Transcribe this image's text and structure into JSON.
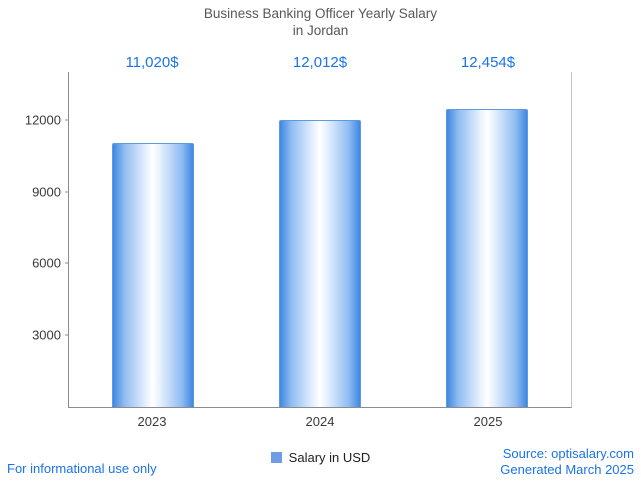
{
  "title": {
    "line1": "Business Banking Officer Yearly Salary",
    "line2": "in Jordan"
  },
  "colors": {
    "accent_blue": "#1a73e8",
    "bar_edge_blue": "#3f87e0",
    "legend_swatch": "#6f9de3",
    "title_gray": "#58585a",
    "axis_gray": "#8b8b8b"
  },
  "chart_data": {
    "type": "bar",
    "title": "Business Banking Officer Yearly Salary in Jordan",
    "categories": [
      "2023",
      "2024",
      "2025"
    ],
    "values": [
      11020,
      12012,
      12454
    ],
    "value_labels": [
      "11,020$",
      "12,012$",
      "12,454$"
    ],
    "series_name": "Salary in USD",
    "xlabel": "",
    "ylabel": "",
    "ylim": [
      0,
      14000
    ],
    "yticks": [
      3000,
      6000,
      9000,
      12000
    ],
    "grid": false,
    "legend_position": "bottom"
  },
  "legend": {
    "label": "Salary in USD"
  },
  "footer": {
    "disclaimer": "For informational use only",
    "source": "Source: optisalary.com",
    "generated": "Generated March 2025"
  }
}
